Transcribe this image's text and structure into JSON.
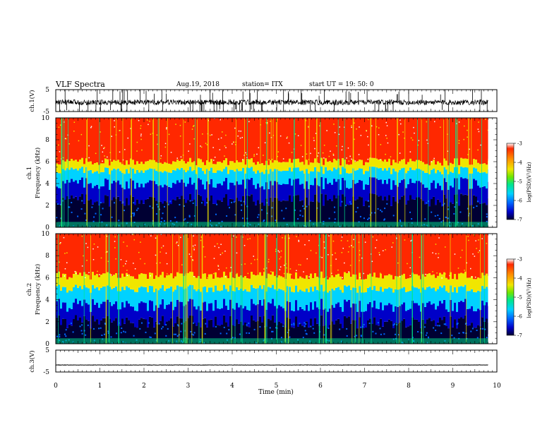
{
  "header": {
    "title": "VLF Spectra",
    "date": "Aug.19, 2018",
    "station": "station= ITX",
    "start": "start UT =  19: 50: 0"
  },
  "chart_data": [
    {
      "type": "line",
      "panel": "ch1-waveform",
      "ylabel": "ch.1(V)",
      "ylim": [
        -5,
        5
      ],
      "yticks": [
        "5",
        "-5"
      ],
      "xlim": [
        0,
        10
      ],
      "baseline": -0.8,
      "trace_end": 9.8,
      "noise": "impulsive spikes exceeding ±5 V"
    },
    {
      "type": "heatmap",
      "panel": "ch1-spectrogram",
      "ylabel": "ch.1\nFrequency (kHz)",
      "ylim": [
        0,
        10
      ],
      "yticks": [
        "0",
        "2",
        "4",
        "6",
        "8",
        "10"
      ],
      "xlim": [
        0,
        10
      ],
      "data_end": 9.8,
      "band_edges_khz": {
        "dark_below": 2.5,
        "blue_below": 4.0,
        "green_below": 5.2,
        "yellow_below": 6.0
      },
      "colorbar": {
        "label": "log(PSD)(V²/Hz)",
        "ticks": [
          "-3",
          "-4",
          "-5",
          "-6",
          "-7"
        ],
        "range": [
          -7,
          -3
        ]
      }
    },
    {
      "type": "heatmap",
      "panel": "ch2-spectrogram",
      "ylabel": "ch.2\nFrequency (kHz)",
      "ylim": [
        0,
        10
      ],
      "yticks": [
        "0",
        "2",
        "4",
        "6",
        "8",
        "10"
      ],
      "xlim": [
        0,
        10
      ],
      "data_end": 9.8,
      "band_edges_khz": {
        "dark_below": 2.0,
        "blue_below": 3.5,
        "green_below": 5.0,
        "yellow_below": 6.2
      },
      "colorbar": {
        "label": "log(PSD)(V²/Hz)",
        "ticks": [
          "-3",
          "-4",
          "-5",
          "-6",
          "-7"
        ],
        "range": [
          -7,
          -3
        ]
      }
    },
    {
      "type": "line",
      "panel": "ch3-waveform",
      "ylabel": "ch.3(V)",
      "ylim": [
        -5,
        5
      ],
      "yticks": [
        "5",
        "-5"
      ],
      "xlim": [
        0,
        10
      ],
      "baseline": -1.8,
      "trace_end": 9.8
    }
  ],
  "xaxis": {
    "label": "Time (min)",
    "ticks": [
      "0",
      "1",
      "2",
      "3",
      "4",
      "5",
      "6",
      "7",
      "8",
      "9",
      "10"
    ]
  },
  "colorscale": [
    "#000033",
    "#0000c8",
    "#0066ff",
    "#00d2ff",
    "#00e68c",
    "#6ee600",
    "#f0e600",
    "#ff8c00",
    "#ff2800"
  ]
}
